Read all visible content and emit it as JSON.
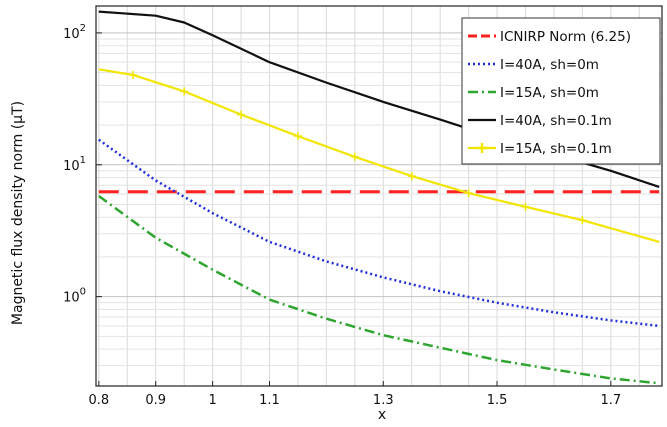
{
  "chart_data": {
    "type": "line",
    "title": "",
    "xlabel": "x",
    "ylabel": "Magnetic flux density norm (μT)",
    "yscale": "log",
    "xlim": [
      0.795,
      1.79
    ],
    "ylim": [
      0.21,
      160
    ],
    "grid": true,
    "legend_position": "top-right",
    "x_ticks": [
      {
        "v": 0.8,
        "label": "0.8"
      },
      {
        "v": 0.9,
        "label": "0.9"
      },
      {
        "v": 1.0,
        "label": "1"
      },
      {
        "v": 1.1,
        "label": "1.1"
      },
      {
        "v": 1.3,
        "label": "1.3"
      },
      {
        "v": 1.5,
        "label": "1.5"
      },
      {
        "v": 1.7,
        "label": "1.7"
      }
    ],
    "y_ticks": [
      {
        "v": 1,
        "base": "10",
        "exp": "0"
      },
      {
        "v": 10,
        "base": "10",
        "exp": "1"
      },
      {
        "v": 100,
        "base": "10",
        "exp": "2"
      }
    ],
    "series": [
      {
        "name": "ICNIRP Norm (6.25)",
        "color": "#ff2020",
        "dash": "20,9",
        "width": 3,
        "marker": "none",
        "x": [
          0.8,
          1.785
        ],
        "y": [
          6.25,
          6.25
        ]
      },
      {
        "name": "I=40A, sh=0m",
        "color": "#1f2fdd",
        "dash": "2,3",
        "width": 2.5,
        "marker": "none",
        "x": [
          0.8,
          0.9,
          1.0,
          1.1,
          1.2,
          1.3,
          1.4,
          1.5,
          1.6,
          1.7,
          1.785
        ],
        "y": [
          15.5,
          7.6,
          4.3,
          2.6,
          1.85,
          1.4,
          1.1,
          0.9,
          0.76,
          0.66,
          0.6
        ]
      },
      {
        "name": "I=15A, sh=0m",
        "color": "#2ea52e",
        "dash": "10,4,2,4",
        "width": 2.5,
        "marker": "none",
        "x": [
          0.8,
          0.9,
          1.0,
          1.1,
          1.2,
          1.3,
          1.4,
          1.5,
          1.6,
          1.7,
          1.785
        ],
        "y": [
          5.8,
          2.8,
          1.6,
          0.95,
          0.68,
          0.51,
          0.41,
          0.33,
          0.28,
          0.24,
          0.22
        ]
      },
      {
        "name": "I=40A, sh=0.1m",
        "color": "#111111",
        "dash": "",
        "width": 2.2,
        "marker": "none",
        "x": [
          0.8,
          0.9,
          0.95,
          1.0,
          1.1,
          1.2,
          1.3,
          1.4,
          1.5,
          1.6,
          1.7,
          1.785
        ],
        "y": [
          145,
          135,
          120,
          96,
          60,
          42,
          30,
          22,
          16,
          12,
          9,
          6.8
        ]
      },
      {
        "name": "I=15A, sh=0.1m",
        "color": "#f2e600",
        "dash": "",
        "width": 2.2,
        "marker": "plus",
        "x": [
          0.8,
          0.86,
          0.95,
          1.05,
          1.15,
          1.25,
          1.35,
          1.45,
          1.55,
          1.65,
          1.785
        ],
        "y": [
          53,
          48,
          36,
          24,
          16.5,
          11.5,
          8.2,
          6.1,
          4.8,
          3.8,
          2.6
        ]
      }
    ]
  }
}
